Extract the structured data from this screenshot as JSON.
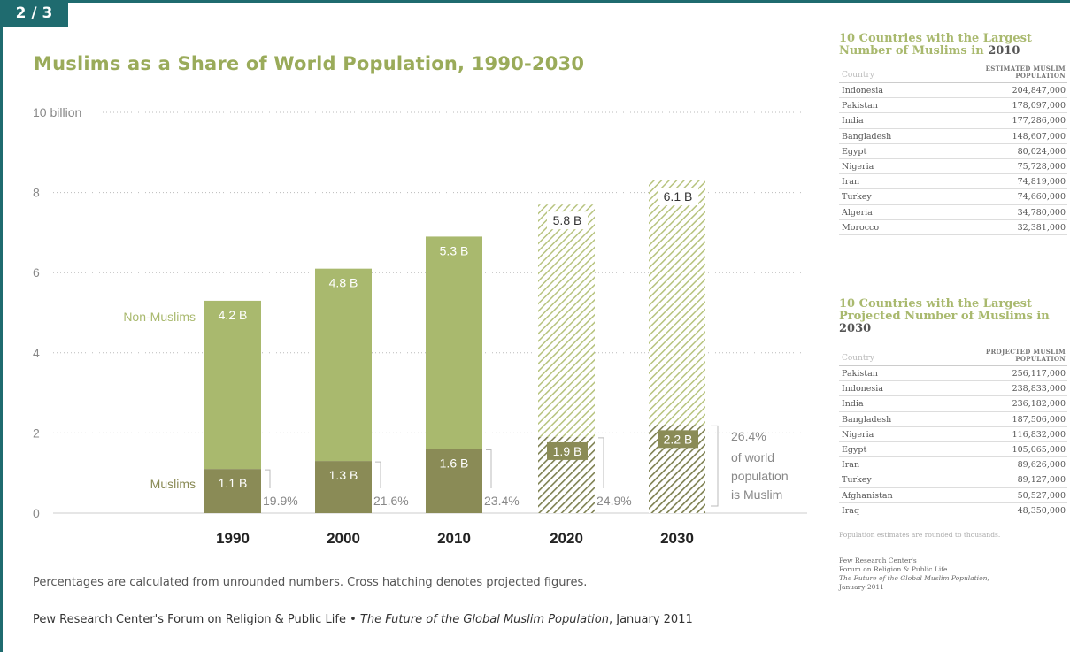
{
  "slide_badge": "2 / 3",
  "title": "Muslims as a Share of World Population, 1990-2030",
  "colors": {
    "non_muslim": "#a9b96e",
    "muslim": "#8a8b56",
    "projected_hatch_light": "#b7c37e",
    "projected_hatch_dark": "#7d8050",
    "title": "#9aab5a",
    "frame": "#1f6b6f"
  },
  "chart_data": {
    "type": "bar",
    "stacked": true,
    "categories": [
      "1990",
      "2000",
      "2010",
      "2020",
      "2030"
    ],
    "projected": [
      false,
      false,
      false,
      true,
      true
    ],
    "series": [
      {
        "name": "Muslims",
        "values": [
          1.1,
          1.3,
          1.6,
          1.9,
          2.2
        ],
        "labels": [
          "1.1 B",
          "1.3 B",
          "1.6 B",
          "1.9 B",
          "2.2 B"
        ]
      },
      {
        "name": "Non-Muslims",
        "values": [
          4.2,
          4.8,
          5.3,
          5.8,
          6.1
        ],
        "labels": [
          "4.2 B",
          "4.8 B",
          "5.3 B",
          "5.8 B",
          "6.1 B"
        ]
      }
    ],
    "percent_muslim": [
      "19.9%",
      "21.6%",
      "23.4%",
      "24.9%",
      "26.4%"
    ],
    "last_percent_note": [
      "of world",
      "population",
      "is Muslim"
    ],
    "y_ticks": [
      {
        "value": 0,
        "label": "0"
      },
      {
        "value": 2,
        "label": "2"
      },
      {
        "value": 4,
        "label": "4"
      },
      {
        "value": 6,
        "label": "6"
      },
      {
        "value": 8,
        "label": "8"
      },
      {
        "value": 10,
        "label": "10 billion"
      }
    ],
    "ylim": [
      0,
      10
    ],
    "grid": true
  },
  "footnote": "Percentages are calculated from unrounded numbers. Cross hatching denotes projected figures.",
  "source": {
    "prefix": "Pew Research Center's Forum on Religion & Public Life • ",
    "title": "The Future of the Global Muslim Population",
    "suffix": ", January 2011"
  },
  "table_2010": {
    "title": "10 Countries with the Largest Number of Muslims in",
    "year": "2010",
    "col_country": "Country",
    "col_value": [
      "ESTIMATED MUSLIM",
      "POPULATION"
    ],
    "rows": [
      [
        "Indonesia",
        "204,847,000"
      ],
      [
        "Pakistan",
        "178,097,000"
      ],
      [
        "India",
        "177,286,000"
      ],
      [
        "Bangladesh",
        "148,607,000"
      ],
      [
        "Egypt",
        "80,024,000"
      ],
      [
        "Nigeria",
        "75,728,000"
      ],
      [
        "Iran",
        "74,819,000"
      ],
      [
        "Turkey",
        "74,660,000"
      ],
      [
        "Algeria",
        "34,780,000"
      ],
      [
        "Morocco",
        "32,381,000"
      ]
    ]
  },
  "table_2030": {
    "title": "10 Countries with the Largest Projected Number of Muslims in",
    "year": "2030",
    "col_country": "Country",
    "col_value": [
      "PROJECTED MUSLIM",
      "POPULATION"
    ],
    "rows": [
      [
        "Pakistan",
        "256,117,000"
      ],
      [
        "Indonesia",
        "238,833,000"
      ],
      [
        "India",
        "236,182,000"
      ],
      [
        "Bangladesh",
        "187,506,000"
      ],
      [
        "Nigeria",
        "116,832,000"
      ],
      [
        "Egypt",
        "105,065,000"
      ],
      [
        "Iran",
        "89,626,000"
      ],
      [
        "Turkey",
        "89,127,000"
      ],
      [
        "Afghanistan",
        "50,527,000"
      ],
      [
        "Iraq",
        "48,350,000"
      ]
    ]
  },
  "right_note": "Population estimates are rounded to thousands.",
  "right_source": {
    "line1": "Pew Research Center's",
    "line2": "Forum on Religion & Public Life",
    "line3": "The Future of the Global Muslim Population,",
    "line4": "January 2011"
  }
}
